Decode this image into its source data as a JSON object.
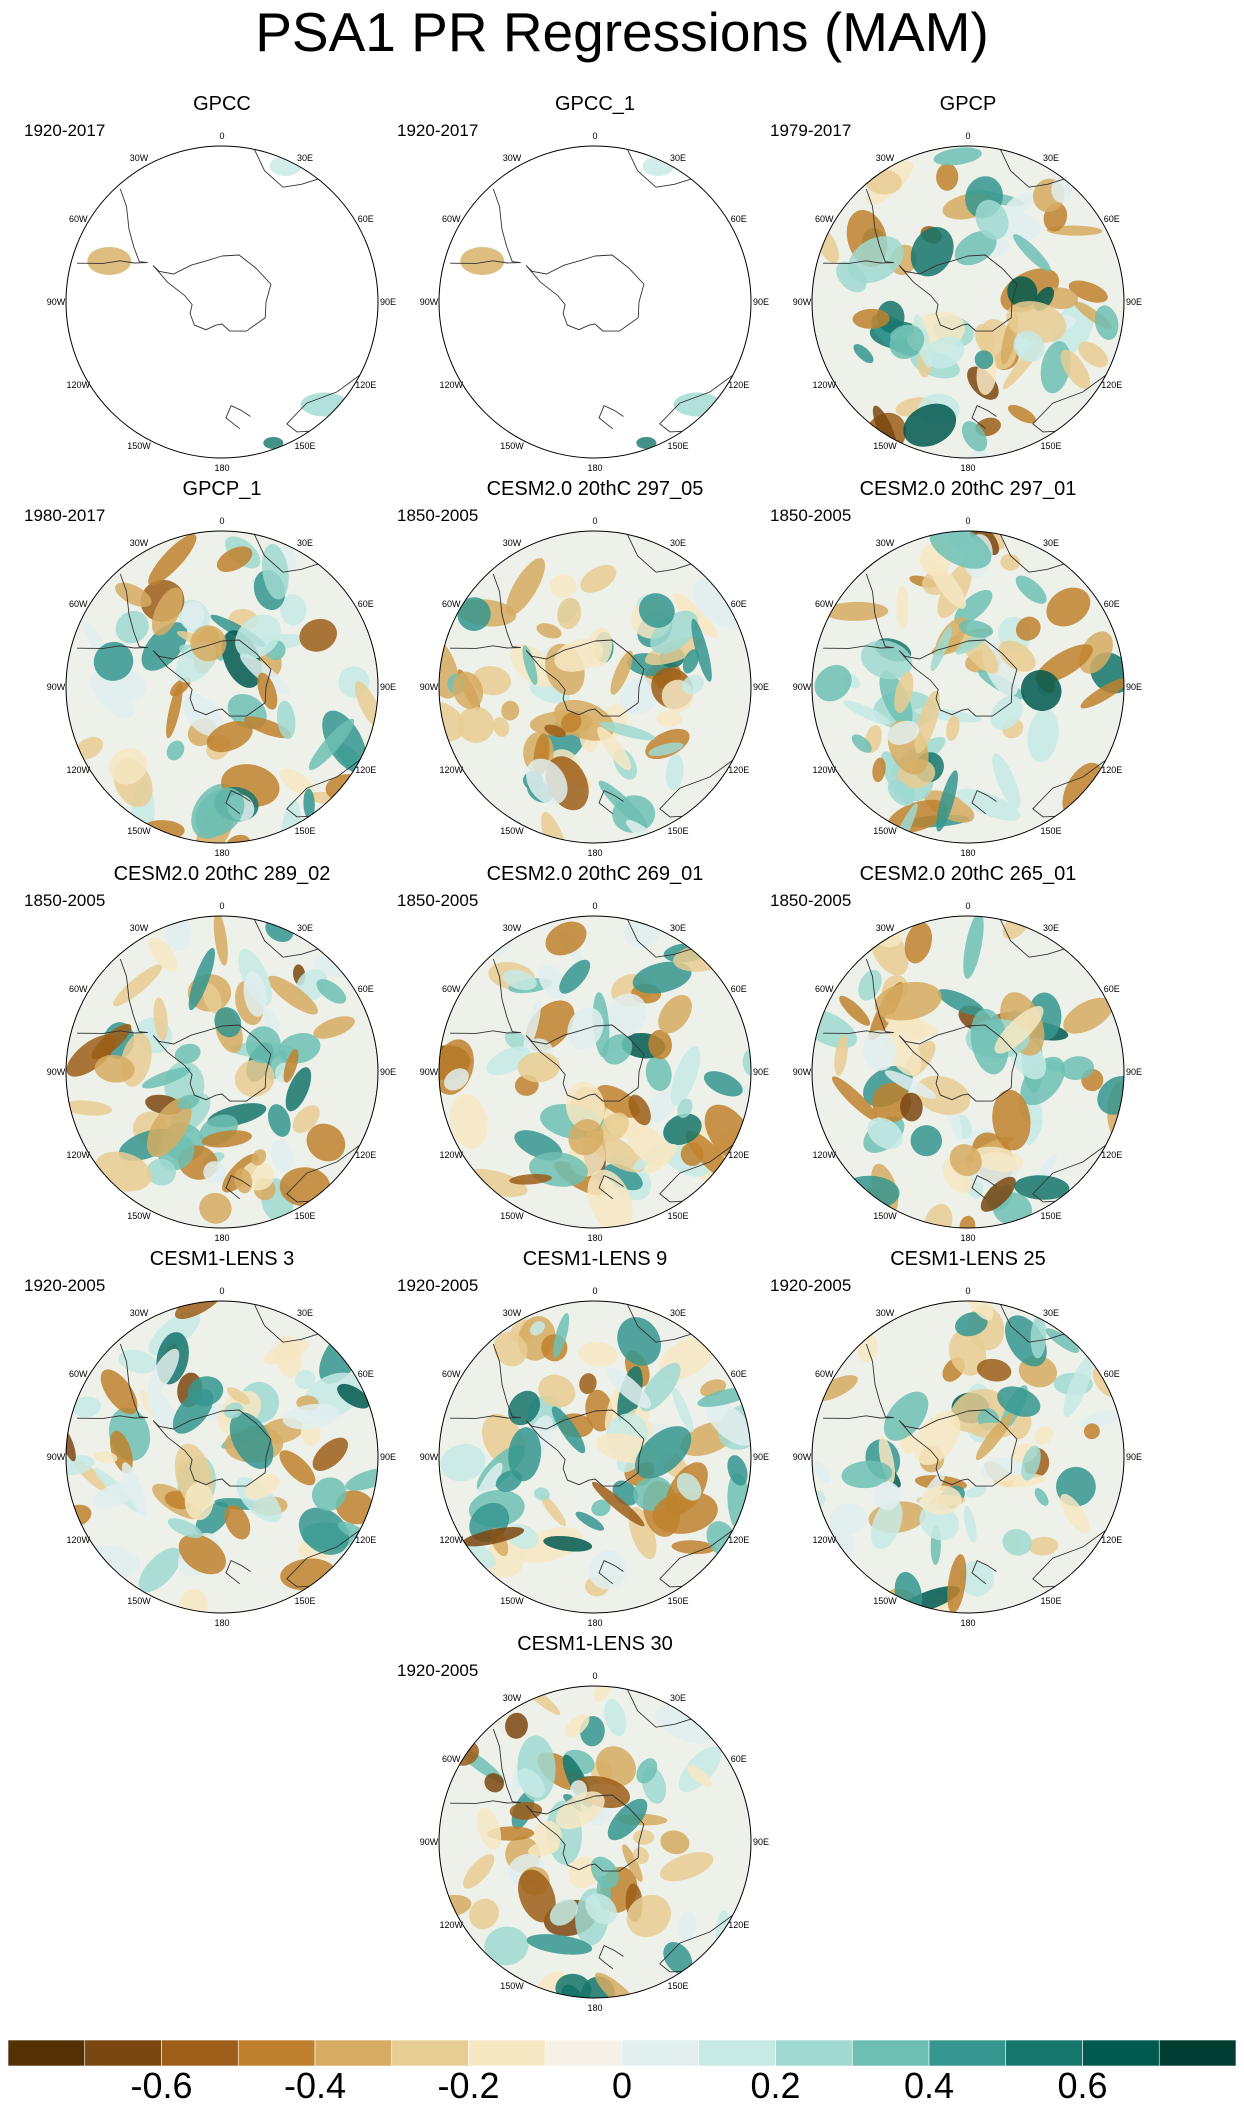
{
  "title": "PSA1 PR Regressions (MAM)",
  "lon_labels": [
    "0",
    "30E",
    "60E",
    "90E",
    "120E",
    "150E",
    "180",
    "150W",
    "120W",
    "90W",
    "60W",
    "30W"
  ],
  "panels": [
    {
      "title": "GPCC",
      "years": "1920-2017",
      "coverage": "land",
      "seed": 3
    },
    {
      "title": "GPCC_1",
      "years": "1920-2017",
      "coverage": "land",
      "seed": 7
    },
    {
      "title": "GPCP",
      "years": "1979-2017",
      "coverage": "full",
      "seed": 11
    },
    {
      "title": "GPCP_1",
      "years": "1980-2017",
      "coverage": "full",
      "seed": 13
    },
    {
      "title": "CESM2.0 20thC 297_05",
      "years": "1850-2005",
      "coverage": "full",
      "seed": 17
    },
    {
      "title": "CESM2.0 20thC 297_01",
      "years": "1850-2005",
      "coverage": "full",
      "seed": 19
    },
    {
      "title": "CESM2.0 20thC 289_02",
      "years": "1850-2005",
      "coverage": "full",
      "seed": 23
    },
    {
      "title": "CESM2.0 20thC 269_01",
      "years": "1850-2005",
      "coverage": "full",
      "seed": 29
    },
    {
      "title": "CESM2.0 20thC 265_01",
      "years": "1850-2005",
      "coverage": "full",
      "seed": 31
    },
    {
      "title": "CESM1-LENS 3",
      "years": "1920-2005",
      "coverage": "full",
      "seed": 37
    },
    {
      "title": "CESM1-LENS 9",
      "years": "1920-2005",
      "coverage": "full",
      "seed": 41
    },
    {
      "title": "CESM1-LENS 25",
      "years": "1920-2005",
      "coverage": "full",
      "seed": 43
    },
    {
      "title": "CESM1-LENS 30",
      "years": "1920-2005",
      "coverage": "full",
      "seed": 47
    }
  ],
  "colorbar": {
    "colors": [
      "#543005",
      "#7a4710",
      "#9c5e18",
      "#bf812d",
      "#d6ac62",
      "#e8cd92",
      "#f6e8c3",
      "#f5f1e6",
      "#e1efef",
      "#c7eae5",
      "#9fd9d0",
      "#6dbfb3",
      "#35978f",
      "#15766c",
      "#01594f",
      "#003c30"
    ],
    "labels": [
      "-0.6",
      "-0.4",
      "-0.2",
      "0",
      "0.2",
      "0.4",
      "0.6"
    ]
  }
}
